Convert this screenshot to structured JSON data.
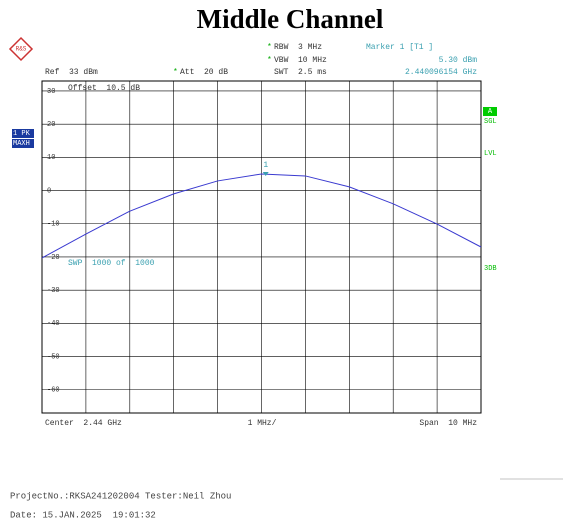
{
  "chart_data": {
    "type": "line",
    "title": "Middle Channel",
    "x": [
      2.435,
      2.436,
      2.437,
      2.438,
      2.439,
      2.44,
      2.441,
      2.442,
      2.443,
      2.444,
      2.445
    ],
    "series": [
      {
        "name": "1 PK",
        "color": "#3a3ad0",
        "values": [
          -20.3,
          -13.1,
          -6.2,
          -1.0,
          2.9,
          5.0,
          4.4,
          1.1,
          -4.0,
          -10.1,
          -17.0
        ]
      }
    ],
    "xlim": [
      2.435,
      2.445
    ],
    "ylim": [
      -67,
      33
    ],
    "yticks": [
      30,
      20,
      10,
      0,
      -10,
      -20,
      -30,
      -40,
      -50,
      -60
    ],
    "grid": true,
    "marker": {
      "x": 2.440096154,
      "value": 5.3,
      "label": "1",
      "readout": "5.30 dBm",
      "frequency": "2.440096154 GHz",
      "name": "Marker 1 [T1 ]"
    },
    "settings": {
      "rbw": "RBW  3 MHz",
      "vbw": "VBW  10 MHz",
      "swt": "SWT  2.5 ms",
      "att": "Att  20 dB",
      "ref": "Ref  33 dBm",
      "offset": "Offset  10.5 dB",
      "trace_mode": "MAXH",
      "sweep": "SWP  1000 of  1000",
      "center": "Center  2.44 GHz",
      "per_div": "1 MHz/",
      "span": "Span  10 MHz",
      "star": "*"
    },
    "side_labels": {
      "a": "A",
      "sgl": "SGL",
      "lvl": "LVL",
      "db3": "3DB"
    }
  },
  "footer": {
    "project": "ProjectNo.:RKSA241202004 Tester:Neil Zhou",
    "date": "Date: 15.JAN.2025  19:01:32"
  }
}
